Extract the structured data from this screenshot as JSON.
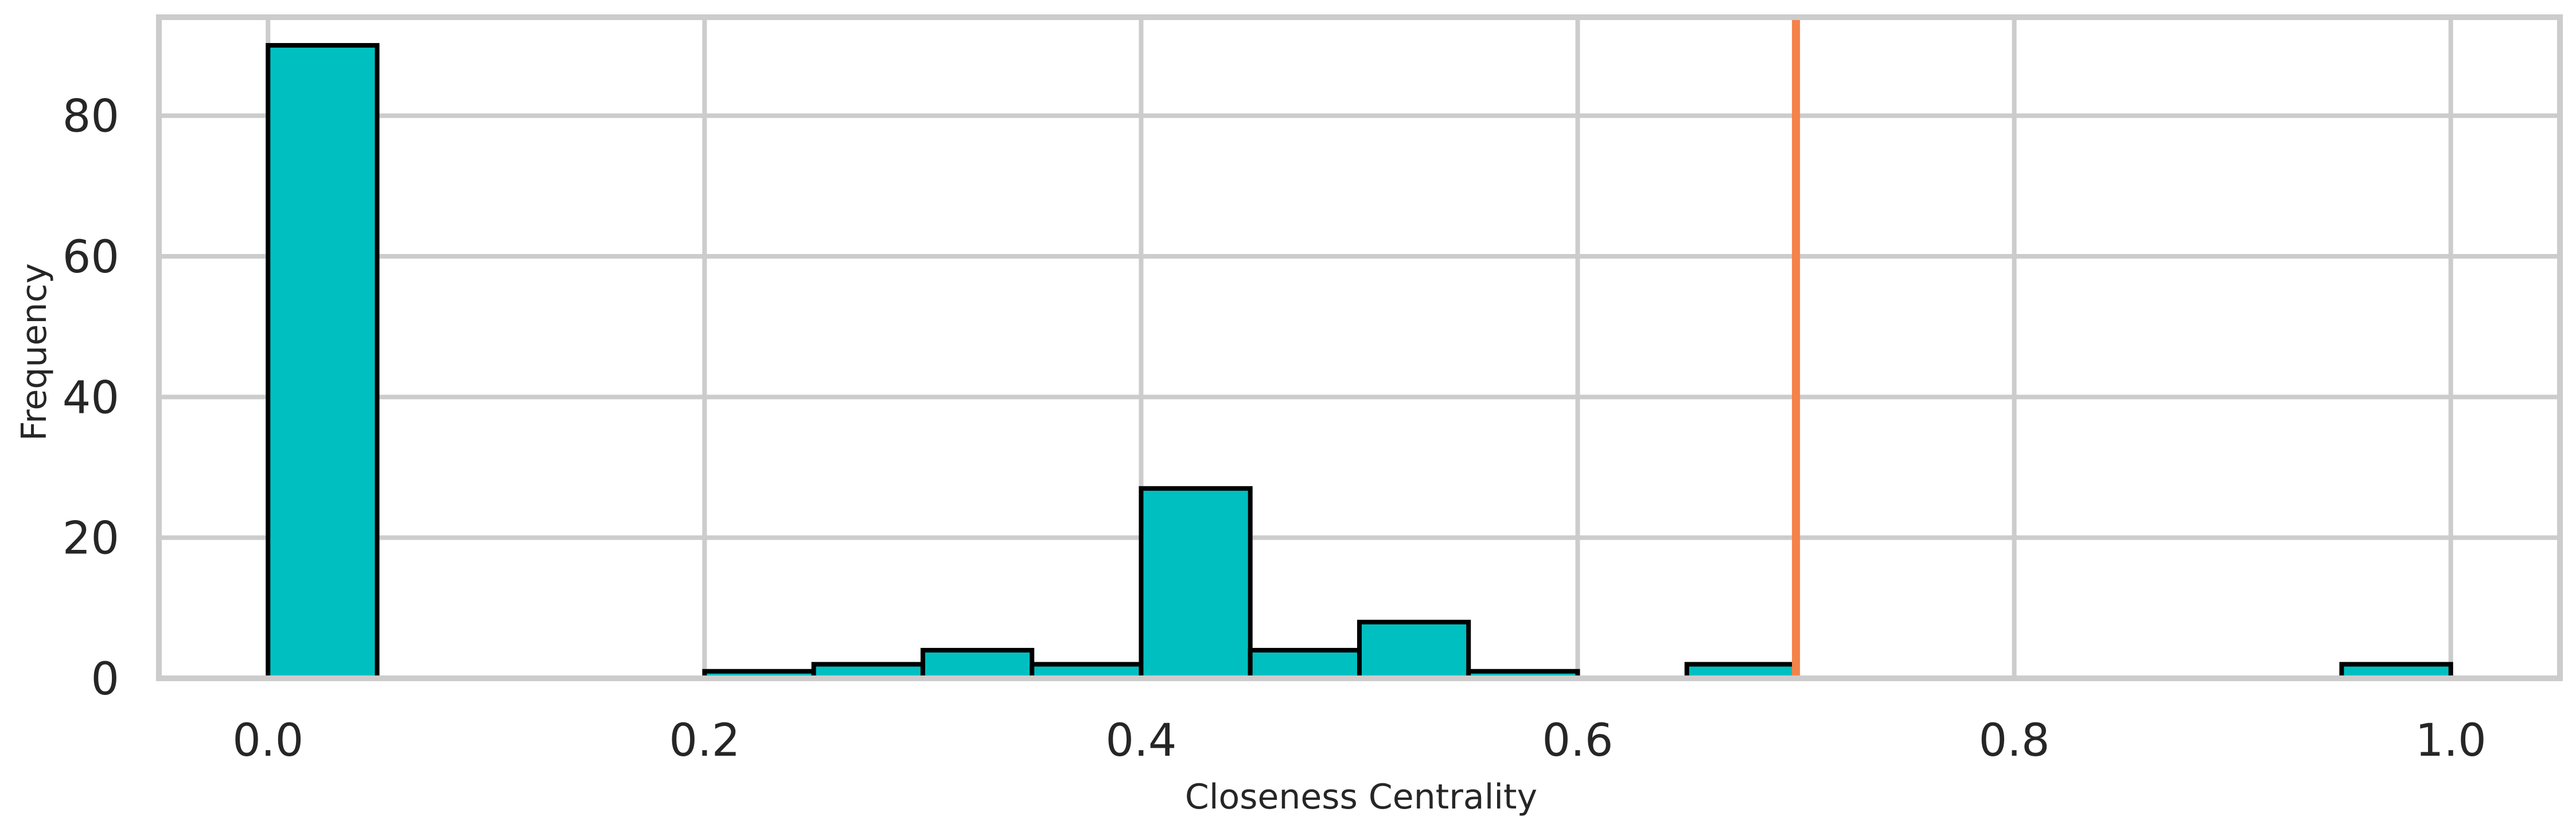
{
  "chart_data": {
    "type": "bar",
    "title": "",
    "xlabel": "Closeness Centrality",
    "ylabel": "Frequency",
    "xlim": [
      -0.05,
      1.05
    ],
    "ylim": [
      0,
      94
    ],
    "bin_width": 0.05,
    "bins": [
      {
        "start": 0.0,
        "end": 0.05,
        "count": 90
      },
      {
        "start": 0.2,
        "end": 0.25,
        "count": 1
      },
      {
        "start": 0.25,
        "end": 0.3,
        "count": 2
      },
      {
        "start": 0.3,
        "end": 0.35,
        "count": 4
      },
      {
        "start": 0.35,
        "end": 0.4,
        "count": 2
      },
      {
        "start": 0.4,
        "end": 0.45,
        "count": 27
      },
      {
        "start": 0.45,
        "end": 0.5,
        "count": 4
      },
      {
        "start": 0.5,
        "end": 0.55,
        "count": 8
      },
      {
        "start": 0.55,
        "end": 0.6,
        "count": 1
      },
      {
        "start": 0.65,
        "end": 0.7,
        "count": 2
      },
      {
        "start": 0.95,
        "end": 1.0,
        "count": 2
      }
    ],
    "vertical_line": {
      "x": 0.7,
      "color": "#f4824a"
    },
    "xticks": [
      {
        "value": 0.0,
        "label": "0.0"
      },
      {
        "value": 0.2,
        "label": "0.2"
      },
      {
        "value": 0.4,
        "label": "0.4"
      },
      {
        "value": 0.6,
        "label": "0.6"
      },
      {
        "value": 0.8,
        "label": "0.8"
      },
      {
        "value": 1.0,
        "label": "1.0"
      }
    ],
    "yticks": [
      {
        "value": 0,
        "label": "0"
      },
      {
        "value": 20,
        "label": "20"
      },
      {
        "value": 40,
        "label": "40"
      },
      {
        "value": 60,
        "label": "60"
      },
      {
        "value": 80,
        "label": "80"
      }
    ],
    "grid": true,
    "colors": {
      "bar_fill": "#00bfc0",
      "bar_edge": "#000000",
      "grid": "#cccccc",
      "frame": "#cccccc",
      "text": "#262626"
    }
  }
}
